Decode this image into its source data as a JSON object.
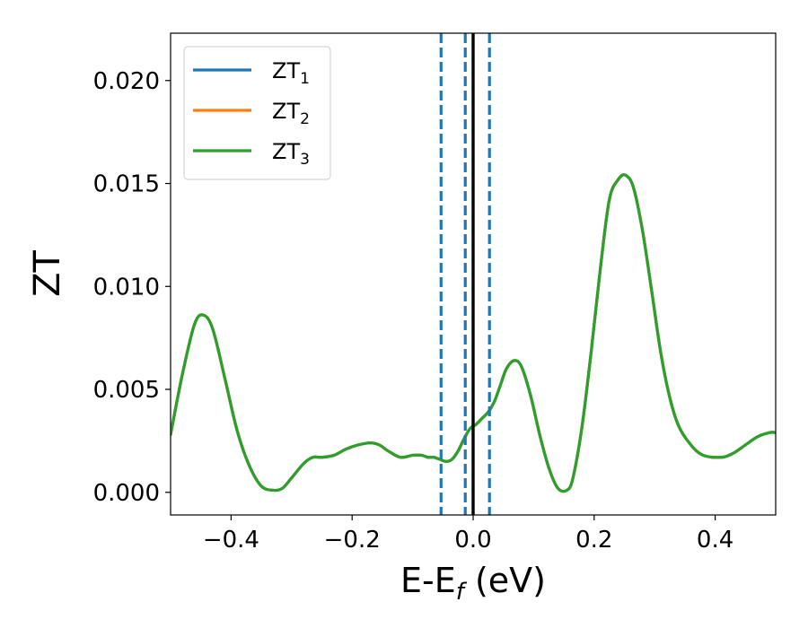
{
  "chart_data": {
    "type": "line",
    "xlabel": {
      "main": "E-E",
      "sub": "f",
      "suffix": " (eV)"
    },
    "ylabel": "ZT",
    "xlim": [
      -0.5,
      0.5
    ],
    "ylim": [
      -0.0011,
      0.0223
    ],
    "xticks": [
      -0.4,
      -0.2,
      0.0,
      0.2,
      0.4
    ],
    "xtick_labels": [
      "−0.4",
      "−0.2",
      "0.0",
      "0.2",
      "0.4"
    ],
    "yticks": [
      0.0,
      0.005,
      0.01,
      0.015,
      0.02
    ],
    "ytick_labels": [
      "0.000",
      "0.005",
      "0.010",
      "0.015",
      "0.020"
    ],
    "grid": false,
    "legend_position": "top-left",
    "legend": [
      {
        "base": "ZT",
        "sub": "1",
        "color": "#1f77b4"
      },
      {
        "base": "ZT",
        "sub": "2",
        "color": "#ff7f0e"
      },
      {
        "base": "ZT",
        "sub": "3",
        "color": "#2ca02c"
      }
    ],
    "series": [
      {
        "name": "ZT1",
        "color": "#1f77b4",
        "x": [
          -0.5,
          -0.48,
          -0.46,
          -0.445,
          -0.43,
          -0.41,
          -0.39,
          -0.37,
          -0.35,
          -0.33,
          -0.315,
          -0.3,
          -0.28,
          -0.265,
          -0.25,
          -0.23,
          -0.21,
          -0.19,
          -0.17,
          -0.155,
          -0.14,
          -0.12,
          -0.1,
          -0.085,
          -0.075,
          -0.065,
          -0.055,
          -0.045,
          -0.035,
          -0.025,
          -0.015,
          -0.005,
          0.005,
          0.015,
          0.025,
          0.035,
          0.045,
          0.055,
          0.068,
          0.08,
          0.095,
          0.11,
          0.125,
          0.14,
          0.155,
          0.165,
          0.18,
          0.195,
          0.21,
          0.225,
          0.24,
          0.252,
          0.265,
          0.28,
          0.295,
          0.31,
          0.325,
          0.34,
          0.36,
          0.38,
          0.41,
          0.43,
          0.45,
          0.47,
          0.49,
          0.5
        ],
        "y": [
          0.0028,
          0.0058,
          0.0082,
          0.0086,
          0.0079,
          0.0055,
          0.003,
          0.0013,
          0.0003,
          0.0001,
          0.0002,
          0.0007,
          0.0014,
          0.0017,
          0.0017,
          0.0018,
          0.0021,
          0.0023,
          0.0024,
          0.0023,
          0.002,
          0.0017,
          0.0018,
          0.0018,
          0.0017,
          0.0017,
          0.0016,
          0.0015,
          0.0016,
          0.002,
          0.0026,
          0.0031,
          0.0033,
          0.0036,
          0.0039,
          0.0044,
          0.0052,
          0.006,
          0.0064,
          0.0061,
          0.0047,
          0.0028,
          0.0012,
          0.0002,
          0.0001,
          0.0007,
          0.0032,
          0.0068,
          0.0108,
          0.0142,
          0.0152,
          0.0154,
          0.0148,
          0.0127,
          0.0098,
          0.0068,
          0.0046,
          0.0032,
          0.0023,
          0.0018,
          0.0017,
          0.0019,
          0.0023,
          0.0027,
          0.0029,
          0.0029
        ]
      },
      {
        "name": "ZT2",
        "color": "#ff7f0e",
        "x": [
          -0.5,
          -0.48,
          -0.46,
          -0.445,
          -0.43,
          -0.41,
          -0.39,
          -0.37,
          -0.35,
          -0.33,
          -0.315,
          -0.3,
          -0.28,
          -0.265,
          -0.25,
          -0.23,
          -0.21,
          -0.19,
          -0.17,
          -0.155,
          -0.14,
          -0.12,
          -0.1,
          -0.085,
          -0.075,
          -0.065,
          -0.055,
          -0.045,
          -0.035,
          -0.025,
          -0.015,
          -0.005,
          0.005,
          0.015,
          0.025,
          0.035,
          0.045,
          0.055,
          0.068,
          0.08,
          0.095,
          0.11,
          0.125,
          0.14,
          0.155,
          0.165,
          0.18,
          0.195,
          0.21,
          0.225,
          0.24,
          0.252,
          0.265,
          0.28,
          0.295,
          0.31,
          0.325,
          0.34,
          0.36,
          0.38,
          0.41,
          0.43,
          0.45,
          0.47,
          0.49,
          0.5
        ],
        "y": [
          0.0028,
          0.0058,
          0.0082,
          0.0086,
          0.0079,
          0.0055,
          0.003,
          0.0013,
          0.0003,
          0.0001,
          0.0002,
          0.0007,
          0.0014,
          0.0017,
          0.0017,
          0.0018,
          0.0021,
          0.0023,
          0.0024,
          0.0023,
          0.002,
          0.0017,
          0.0018,
          0.0018,
          0.0017,
          0.0017,
          0.0016,
          0.0015,
          0.0016,
          0.002,
          0.0026,
          0.0031,
          0.0033,
          0.0036,
          0.0039,
          0.0044,
          0.0052,
          0.006,
          0.0064,
          0.0061,
          0.0047,
          0.0028,
          0.0012,
          0.0002,
          0.0001,
          0.0007,
          0.0032,
          0.0068,
          0.0108,
          0.0142,
          0.0152,
          0.0154,
          0.0148,
          0.0127,
          0.0098,
          0.0068,
          0.0046,
          0.0032,
          0.0023,
          0.0018,
          0.0017,
          0.0019,
          0.0023,
          0.0027,
          0.0029,
          0.0029
        ]
      },
      {
        "name": "ZT3",
        "color": "#2ca02c",
        "x": [
          -0.5,
          -0.48,
          -0.46,
          -0.445,
          -0.43,
          -0.41,
          -0.39,
          -0.37,
          -0.35,
          -0.33,
          -0.315,
          -0.3,
          -0.28,
          -0.265,
          -0.25,
          -0.23,
          -0.21,
          -0.19,
          -0.17,
          -0.155,
          -0.14,
          -0.12,
          -0.1,
          -0.085,
          -0.075,
          -0.065,
          -0.055,
          -0.045,
          -0.035,
          -0.025,
          -0.015,
          -0.005,
          0.005,
          0.015,
          0.025,
          0.035,
          0.045,
          0.055,
          0.068,
          0.08,
          0.095,
          0.11,
          0.125,
          0.14,
          0.155,
          0.165,
          0.18,
          0.195,
          0.21,
          0.225,
          0.24,
          0.252,
          0.265,
          0.28,
          0.295,
          0.31,
          0.325,
          0.34,
          0.36,
          0.38,
          0.41,
          0.43,
          0.45,
          0.47,
          0.49,
          0.5
        ],
        "y": [
          0.0028,
          0.0058,
          0.0082,
          0.0086,
          0.0079,
          0.0055,
          0.003,
          0.0013,
          0.0003,
          0.0001,
          0.0002,
          0.0007,
          0.0014,
          0.0017,
          0.0017,
          0.0018,
          0.0021,
          0.0023,
          0.0024,
          0.0023,
          0.002,
          0.0017,
          0.0018,
          0.0018,
          0.0017,
          0.0017,
          0.0016,
          0.0015,
          0.0016,
          0.002,
          0.0026,
          0.0031,
          0.0033,
          0.0036,
          0.0039,
          0.0044,
          0.0052,
          0.006,
          0.0064,
          0.0061,
          0.0047,
          0.0028,
          0.0012,
          0.0002,
          0.0001,
          0.0007,
          0.0032,
          0.0068,
          0.0108,
          0.0142,
          0.0152,
          0.0154,
          0.0148,
          0.0127,
          0.0098,
          0.0068,
          0.0046,
          0.0032,
          0.0023,
          0.0018,
          0.0017,
          0.0019,
          0.0023,
          0.0027,
          0.0029,
          0.0029
        ]
      }
    ],
    "vlines": [
      {
        "x": -0.053,
        "style": "dashed",
        "color": "#1f77b4"
      },
      {
        "x": -0.013,
        "style": "dashed",
        "color": "#1f77b4"
      },
      {
        "x": 0.0,
        "style": "solid",
        "color": "#000000"
      },
      {
        "x": 0.027,
        "style": "dashed",
        "color": "#1f77b4"
      }
    ]
  }
}
